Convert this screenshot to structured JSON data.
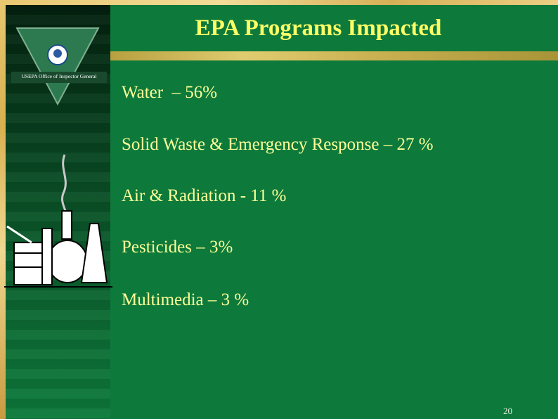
{
  "slide": {
    "title": "EPA Programs Impacted",
    "logo_caption": "USEPA Office of Inspector General",
    "items": [
      "Water  – 56%",
      "Solid Waste & Emergency Response – 27 %",
      "Air & Radiation - 11 %",
      "Pesticides – 3%",
      "Multimedia – 3 %"
    ],
    "page_number": "20"
  }
}
